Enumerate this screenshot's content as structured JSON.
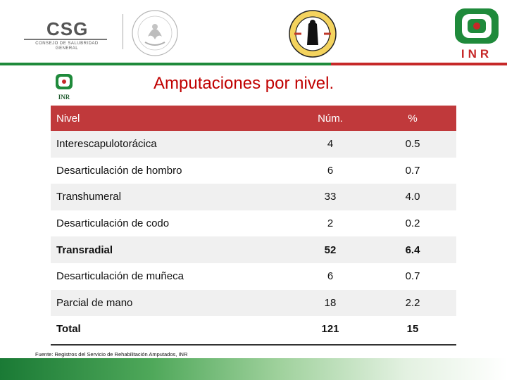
{
  "header": {
    "csg_name": "CSG",
    "csg_subtitle_line1": "CONSEJO DE SALUBRIDAD",
    "csg_subtitle_line2": "GENERAL",
    "inr_label": "INR"
  },
  "title": "Amputaciones por nivel.",
  "table": {
    "headers": {
      "nivel": "Nivel",
      "num": "Núm.",
      "pct": "%"
    },
    "rows": [
      {
        "nivel": "Interescapulotorácica",
        "num": "4",
        "pct": "0.5"
      },
      {
        "nivel": "Desarticulación de hombro",
        "num": "6",
        "pct": "0.7"
      },
      {
        "nivel": "Transhumeral",
        "num": "33",
        "pct": "4.0"
      },
      {
        "nivel": "Desarticulación de codo",
        "num": "2",
        "pct": "0.2"
      },
      {
        "nivel": "Transradial",
        "num": "52",
        "pct": "6.4"
      },
      {
        "nivel": "Desarticulación de muñeca",
        "num": "6",
        "pct": "0.7"
      },
      {
        "nivel": "Parcial de mano",
        "num": "18",
        "pct": "2.2"
      },
      {
        "nivel": "Total",
        "num": "121",
        "pct": "15"
      }
    ]
  },
  "source": "Fuente: Registros del Servicio de Rehabilitación Amputados, INR",
  "colors": {
    "accent_red": "#c00000",
    "header_row": "#c0393b",
    "brand_green": "#1f8a3b"
  }
}
